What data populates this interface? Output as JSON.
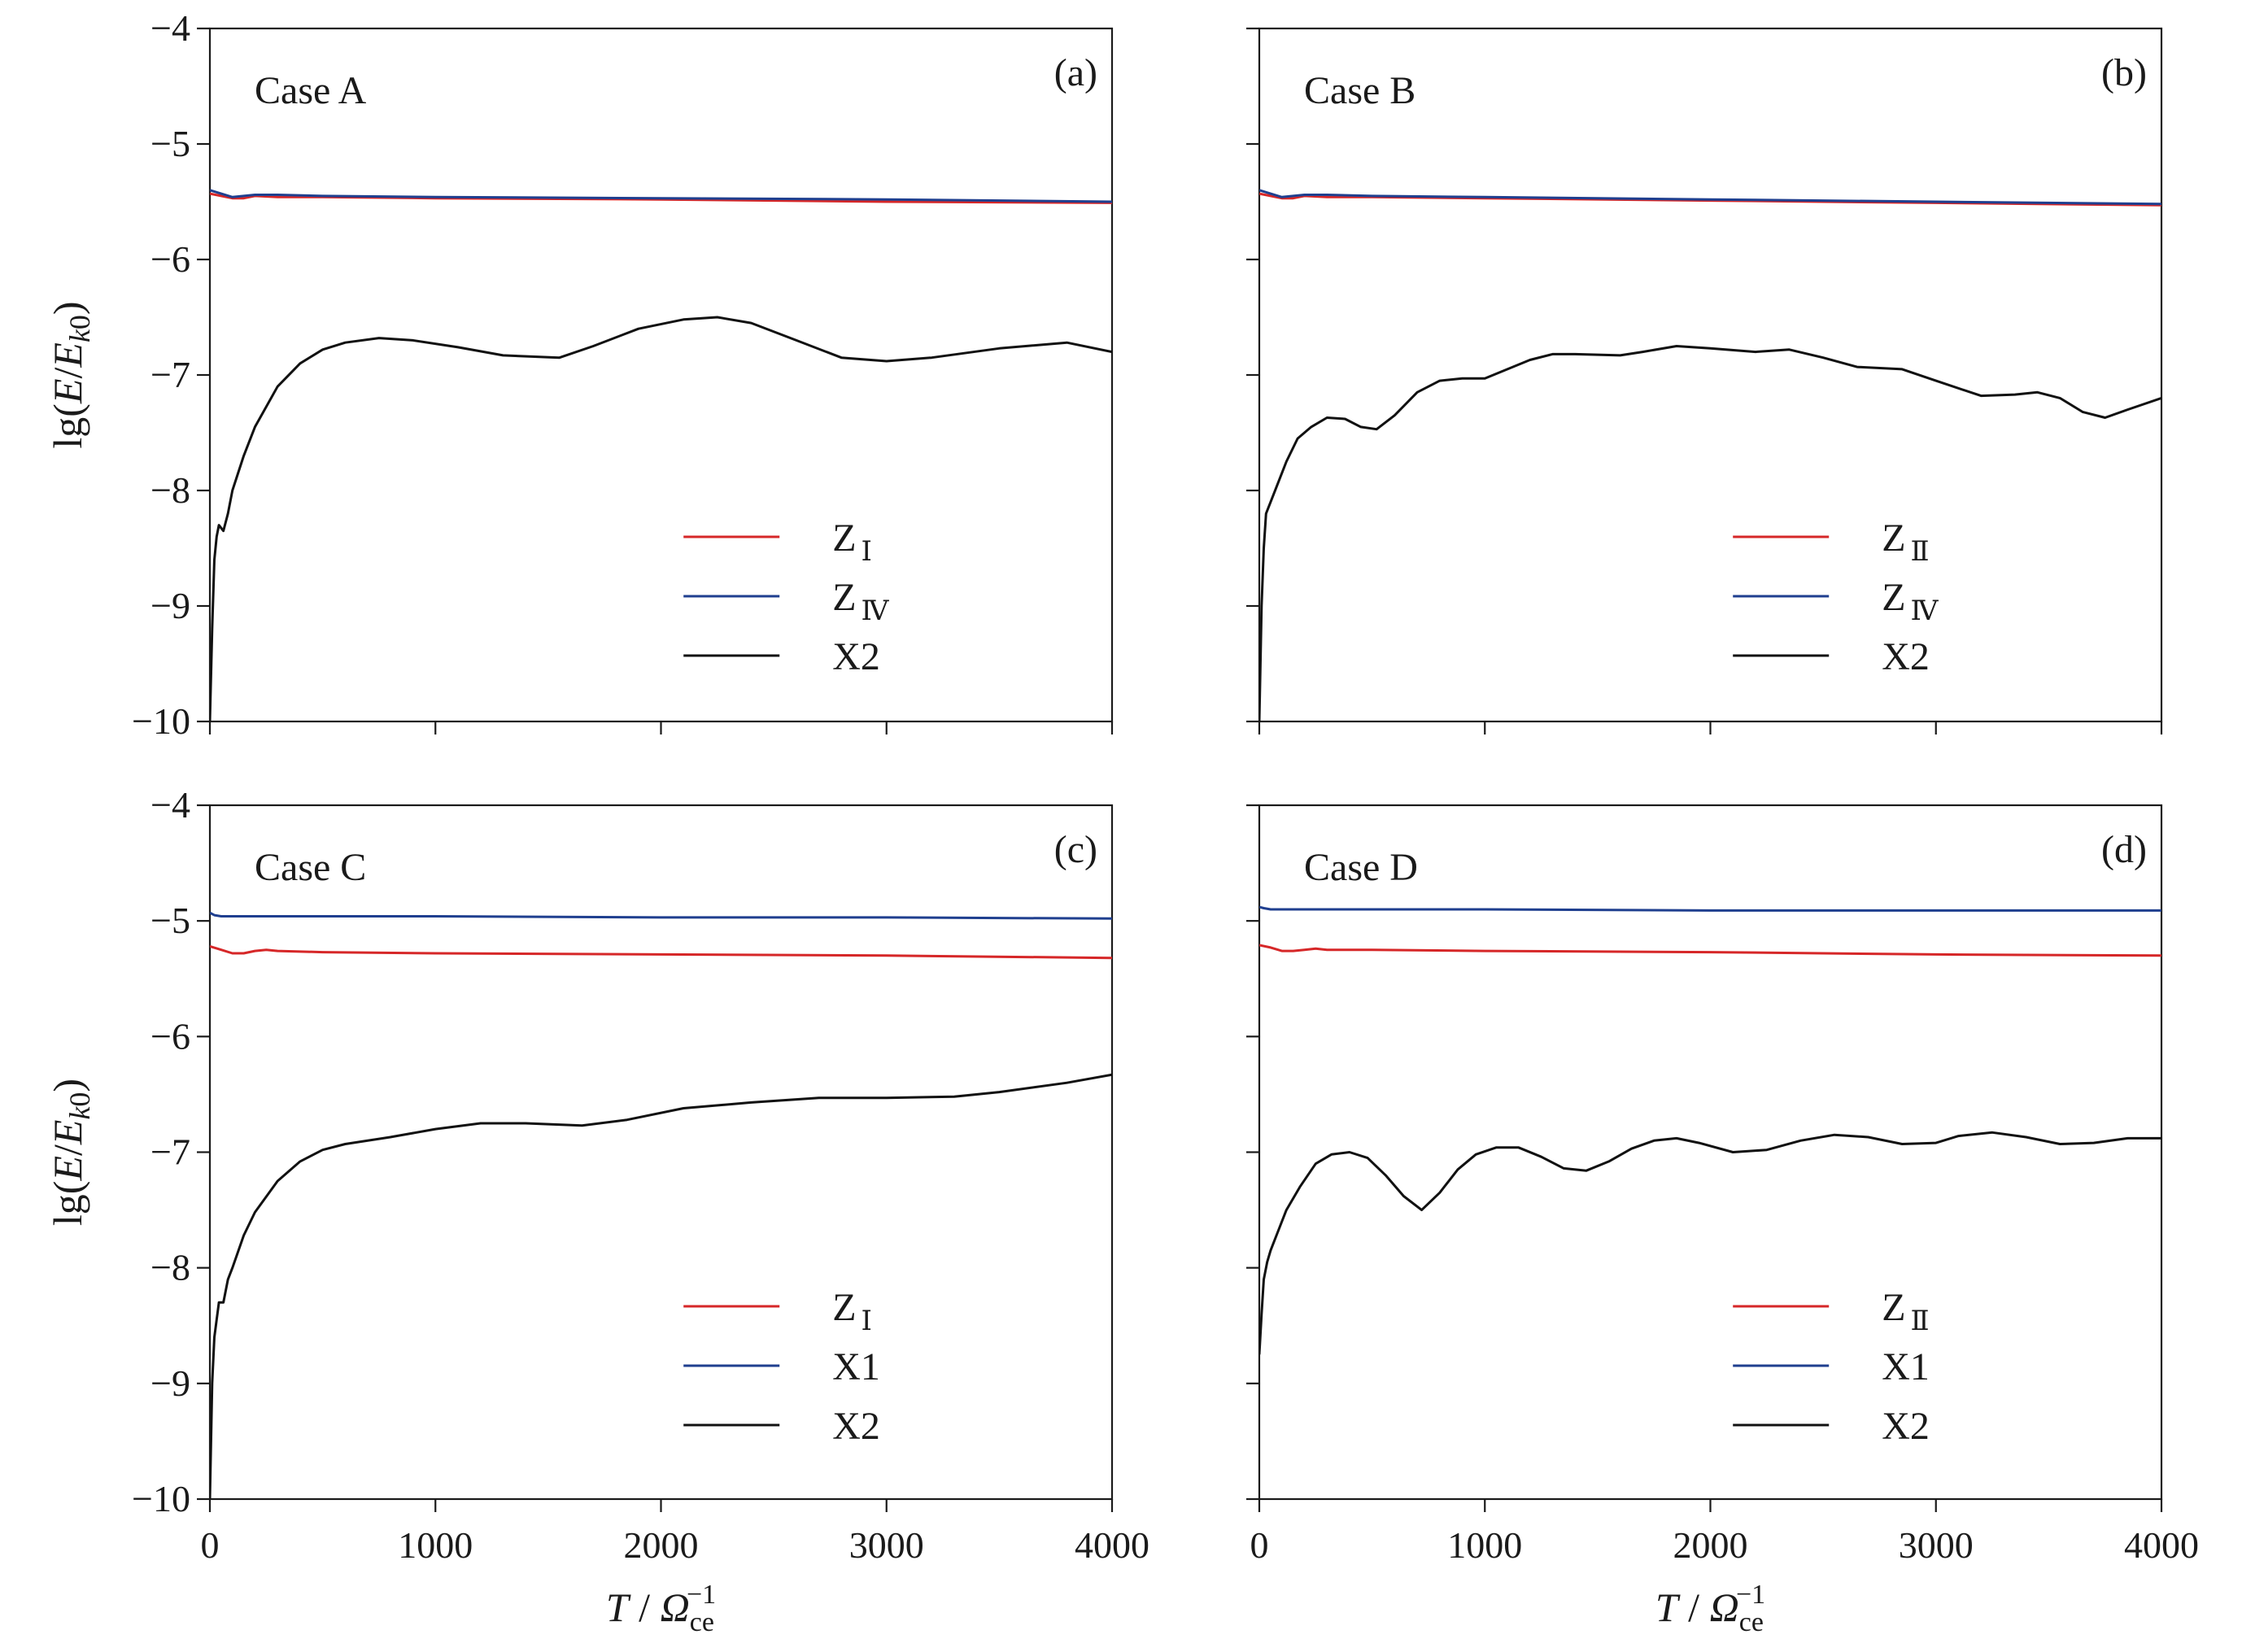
{
  "chart_data": [
    {
      "type": "line",
      "panel": "(a)",
      "case_label": "Case A",
      "ylabel": "lg(E/Ek0)",
      "xlabel": "",
      "xlim": [
        0,
        4000
      ],
      "ylim": [
        -10,
        -4
      ],
      "xticks": [
        0,
        1000,
        2000,
        3000,
        4000
      ],
      "yticks": [
        -4,
        -5,
        -6,
        -7,
        -8,
        -9,
        -10
      ],
      "show_x_tick_labels": false,
      "show_y_tick_labels": true,
      "legend_position": "bottom-right",
      "series": [
        {
          "name": "ZⅠ",
          "color": "#d62728",
          "x": [
            0,
            50,
            100,
            150,
            200,
            300,
            500,
            1000,
            2000,
            3000,
            4000
          ],
          "y": [
            -5.43,
            -5.45,
            -5.47,
            -5.47,
            -5.45,
            -5.46,
            -5.46,
            -5.47,
            -5.48,
            -5.5,
            -5.51
          ]
        },
        {
          "name": "ZⅣ",
          "color": "#1f3f8f",
          "x": [
            0,
            50,
            100,
            150,
            200,
            300,
            500,
            1000,
            2000,
            3000,
            4000
          ],
          "y": [
            -5.4,
            -5.43,
            -5.46,
            -5.45,
            -5.44,
            -5.44,
            -5.45,
            -5.46,
            -5.47,
            -5.48,
            -5.5
          ]
        },
        {
          "name": "X2",
          "color": "#111111",
          "x": [
            0,
            10,
            20,
            30,
            40,
            60,
            80,
            100,
            150,
            200,
            300,
            400,
            500,
            600,
            750,
            900,
            1100,
            1300,
            1550,
            1700,
            1900,
            2100,
            2250,
            2400,
            2600,
            2800,
            3000,
            3200,
            3500,
            3800,
            4000
          ],
          "y": [
            -10.0,
            -9.2,
            -8.6,
            -8.4,
            -8.3,
            -8.35,
            -8.2,
            -8.0,
            -7.7,
            -7.45,
            -7.1,
            -6.9,
            -6.78,
            -6.72,
            -6.68,
            -6.7,
            -6.76,
            -6.83,
            -6.85,
            -6.75,
            -6.6,
            -6.52,
            -6.5,
            -6.55,
            -6.7,
            -6.85,
            -6.88,
            -6.85,
            -6.77,
            -6.72,
            -6.8
          ]
        }
      ]
    },
    {
      "type": "line",
      "panel": "(b)",
      "case_label": "Case B",
      "xlabel": "",
      "xlim": [
        0,
        4000
      ],
      "ylim": [
        -10,
        -4
      ],
      "xticks": [
        0,
        1000,
        2000,
        3000,
        4000
      ],
      "yticks": [
        -4,
        -5,
        -6,
        -7,
        -8,
        -9,
        -10
      ],
      "show_x_tick_labels": false,
      "show_y_tick_labels": false,
      "legend_position": "bottom-right",
      "series": [
        {
          "name": "ZⅡ",
          "color": "#d62728",
          "x": [
            0,
            50,
            100,
            150,
            200,
            300,
            500,
            1000,
            2000,
            3000,
            4000
          ],
          "y": [
            -5.43,
            -5.45,
            -5.47,
            -5.47,
            -5.45,
            -5.46,
            -5.46,
            -5.47,
            -5.49,
            -5.51,
            -5.53
          ]
        },
        {
          "name": "ZⅣ",
          "color": "#1f3f8f",
          "x": [
            0,
            50,
            100,
            150,
            200,
            300,
            500,
            1000,
            2000,
            3000,
            4000
          ],
          "y": [
            -5.4,
            -5.43,
            -5.46,
            -5.45,
            -5.44,
            -5.44,
            -5.45,
            -5.46,
            -5.48,
            -5.5,
            -5.52
          ]
        },
        {
          "name": "X2",
          "color": "#111111",
          "x": [
            0,
            10,
            20,
            30,
            50,
            80,
            120,
            170,
            230,
            300,
            380,
            450,
            520,
            600,
            700,
            800,
            900,
            1000,
            1100,
            1200,
            1300,
            1400,
            1600,
            1700,
            1850,
            2000,
            2200,
            2350,
            2500,
            2650,
            2850,
            3000,
            3200,
            3350,
            3450,
            3550,
            3650,
            3750,
            3850,
            4000
          ],
          "y": [
            -10.0,
            -9.0,
            -8.5,
            -8.2,
            -8.1,
            -7.95,
            -7.75,
            -7.55,
            -7.45,
            -7.37,
            -7.38,
            -7.45,
            -7.47,
            -7.35,
            -7.15,
            -7.05,
            -7.03,
            -7.03,
            -6.95,
            -6.87,
            -6.82,
            -6.82,
            -6.83,
            -6.8,
            -6.75,
            -6.77,
            -6.8,
            -6.78,
            -6.85,
            -6.93,
            -6.95,
            -7.05,
            -7.18,
            -7.17,
            -7.15,
            -7.2,
            -7.32,
            -7.37,
            -7.3,
            -7.2
          ]
        }
      ]
    },
    {
      "type": "line",
      "panel": "(c)",
      "case_label": "Case C",
      "ylabel": "lg(E/Ek0)",
      "xlabel": "T / Ωce⁻¹",
      "xlim": [
        0,
        4000
      ],
      "ylim": [
        -10,
        -4
      ],
      "xticks": [
        0,
        1000,
        2000,
        3000,
        4000
      ],
      "yticks": [
        -4,
        -5,
        -6,
        -7,
        -8,
        -9,
        -10
      ],
      "show_x_tick_labels": true,
      "show_y_tick_labels": true,
      "legend_position": "bottom-right",
      "series": [
        {
          "name": "ZⅠ",
          "color": "#d62728",
          "x": [
            0,
            50,
            100,
            150,
            200,
            250,
            300,
            500,
            1000,
            2000,
            3000,
            4000
          ],
          "y": [
            -5.22,
            -5.25,
            -5.28,
            -5.28,
            -5.26,
            -5.25,
            -5.26,
            -5.27,
            -5.28,
            -5.29,
            -5.3,
            -5.32
          ]
        },
        {
          "name": "X1",
          "color": "#1f3f8f",
          "x": [
            0,
            20,
            50,
            200,
            1000,
            2000,
            3000,
            4000
          ],
          "y": [
            -4.93,
            -4.95,
            -4.96,
            -4.96,
            -4.96,
            -4.97,
            -4.97,
            -4.98
          ]
        },
        {
          "name": "X2",
          "color": "#111111",
          "x": [
            0,
            10,
            20,
            30,
            40,
            60,
            80,
            100,
            150,
            200,
            300,
            400,
            500,
            600,
            800,
            1000,
            1200,
            1400,
            1650,
            1850,
            2100,
            2400,
            2700,
            3000,
            3300,
            3500,
            3800,
            4000
          ],
          "y": [
            -10.0,
            -9.0,
            -8.6,
            -8.45,
            -8.3,
            -8.3,
            -8.1,
            -8.0,
            -7.72,
            -7.52,
            -7.25,
            -7.08,
            -6.98,
            -6.93,
            -6.87,
            -6.8,
            -6.75,
            -6.75,
            -6.77,
            -6.72,
            -6.62,
            -6.57,
            -6.53,
            -6.53,
            -6.52,
            -6.48,
            -6.4,
            -6.33
          ]
        }
      ]
    },
    {
      "type": "line",
      "panel": "(d)",
      "case_label": "Case D",
      "xlabel": "T / Ωce⁻¹",
      "xlim": [
        0,
        4000
      ],
      "ylim": [
        -10,
        -4
      ],
      "xticks": [
        0,
        1000,
        2000,
        3000,
        4000
      ],
      "yticks": [
        -4,
        -5,
        -6,
        -7,
        -8,
        -9,
        -10
      ],
      "show_x_tick_labels": true,
      "show_y_tick_labels": false,
      "legend_position": "bottom-right",
      "series": [
        {
          "name": "ZⅡ",
          "color": "#d62728",
          "x": [
            0,
            50,
            100,
            150,
            200,
            250,
            300,
            500,
            1000,
            2000,
            3000,
            4000
          ],
          "y": [
            -5.21,
            -5.23,
            -5.26,
            -5.26,
            -5.25,
            -5.24,
            -5.25,
            -5.25,
            -5.26,
            -5.27,
            -5.29,
            -5.3
          ]
        },
        {
          "name": "X1",
          "color": "#1f3f8f",
          "x": [
            0,
            20,
            50,
            200,
            1000,
            2000,
            3000,
            4000
          ],
          "y": [
            -4.88,
            -4.89,
            -4.9,
            -4.9,
            -4.9,
            -4.91,
            -4.91,
            -4.91
          ]
        },
        {
          "name": "X2",
          "color": "#111111",
          "x": [
            0,
            10,
            20,
            35,
            50,
            80,
            120,
            180,
            250,
            320,
            400,
            480,
            560,
            640,
            720,
            800,
            880,
            960,
            1050,
            1150,
            1250,
            1350,
            1450,
            1550,
            1650,
            1750,
            1850,
            1950,
            2100,
            2250,
            2400,
            2550,
            2700,
            2850,
            3000,
            3100,
            3250,
            3400,
            3550,
            3700,
            3850,
            4000
          ],
          "y": [
            -8.75,
            -8.4,
            -8.1,
            -7.95,
            -7.85,
            -7.7,
            -7.5,
            -7.3,
            -7.1,
            -7.02,
            -7.0,
            -7.05,
            -7.2,
            -7.38,
            -7.5,
            -7.35,
            -7.15,
            -7.02,
            -6.96,
            -6.96,
            -7.04,
            -7.14,
            -7.16,
            -7.08,
            -6.97,
            -6.9,
            -6.88,
            -6.92,
            -7.0,
            -6.98,
            -6.9,
            -6.85,
            -6.87,
            -6.93,
            -6.92,
            -6.86,
            -6.83,
            -6.87,
            -6.93,
            -6.92,
            -6.88,
            -6.88
          ]
        }
      ]
    }
  ]
}
